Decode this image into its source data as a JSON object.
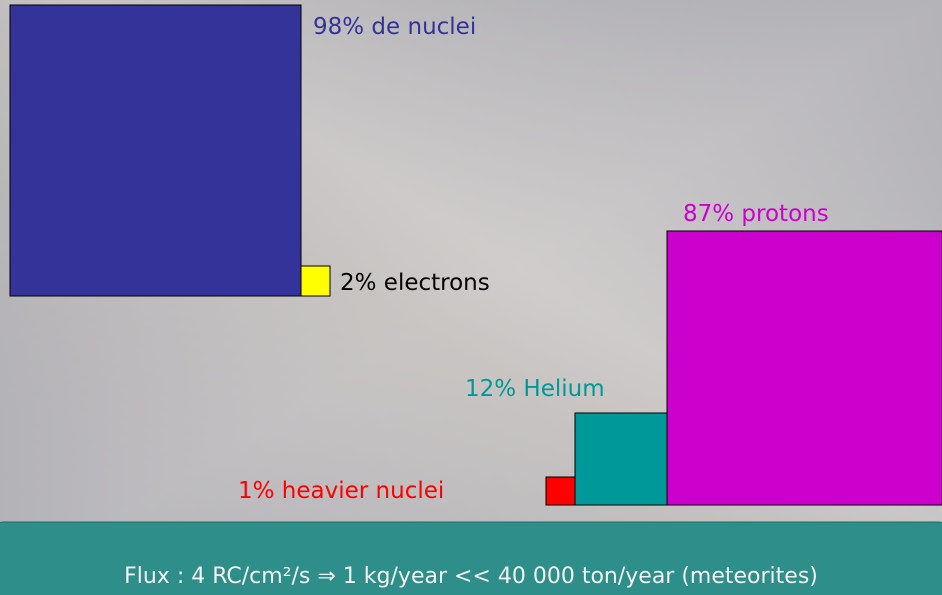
{
  "labels": {
    "nuclei": "98% de nuclei",
    "electrons": "2% electrons",
    "protons": "87% protons",
    "helium": "12% Helium",
    "heavier": "1% heavier nuclei"
  },
  "footer": "Flux : 4 RC/cm²/s ⇒ 1 kg/year << 40 000 ton/year (meteorites)"
}
